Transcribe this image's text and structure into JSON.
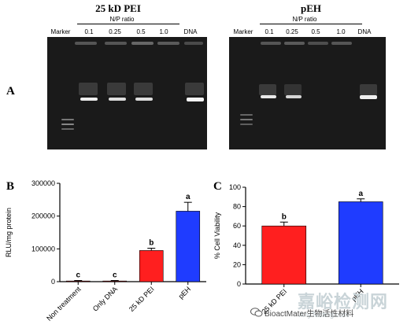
{
  "panel_labels": {
    "a": "A",
    "b": "B",
    "c": "C"
  },
  "gels": [
    {
      "title": "25 kD PEI",
      "ratio_label": "N/P ratio",
      "lanes": [
        "Marker",
        "0.1",
        "0.25",
        "0.5",
        "1.0",
        "DNA"
      ]
    },
    {
      "title": "pEH",
      "ratio_label": "N/P ratio",
      "lanes": [
        "Marker",
        "0.1",
        "0.25",
        "0.5",
        "1.0",
        "DNA"
      ]
    }
  ],
  "colors": {
    "red": "#ff1f1f",
    "blue": "#1f3cff",
    "gel_bg": "#1a1a1a"
  },
  "chart_data": [
    {
      "type": "bar",
      "panel": "B",
      "ylabel": "RLU/mg protein",
      "ylim": [
        0,
        300000
      ],
      "yticks": [
        0,
        100000,
        200000,
        300000
      ],
      "categories": [
        "Non treatment",
        "Only DNA",
        "25 kD PEI",
        "pEH"
      ],
      "values": [
        2000,
        2000,
        95000,
        215000
      ],
      "errors": [
        1500,
        1500,
        7000,
        27000
      ],
      "letters": [
        "c",
        "c",
        "b",
        "a"
      ],
      "bar_colors": [
        "#ff1f1f",
        "#ff1f1f",
        "#ff1f1f",
        "#1f3cff"
      ]
    },
    {
      "type": "bar",
      "panel": "C",
      "ylabel": "% Cell Viability",
      "ylim": [
        0,
        100
      ],
      "yticks": [
        0,
        20,
        40,
        60,
        80,
        100
      ],
      "categories": [
        "25 kD PEI",
        "pEH"
      ],
      "values": [
        60,
        85
      ],
      "errors": [
        4,
        3
      ],
      "letters": [
        "b",
        "a"
      ],
      "bar_colors": [
        "#ff1f1f",
        "#1f3cff"
      ]
    }
  ],
  "watermark": {
    "text": "BioactMater生物活性材料",
    "faint_text": "嘉峪检测网",
    "faint_url": "AnyTesting.com"
  }
}
